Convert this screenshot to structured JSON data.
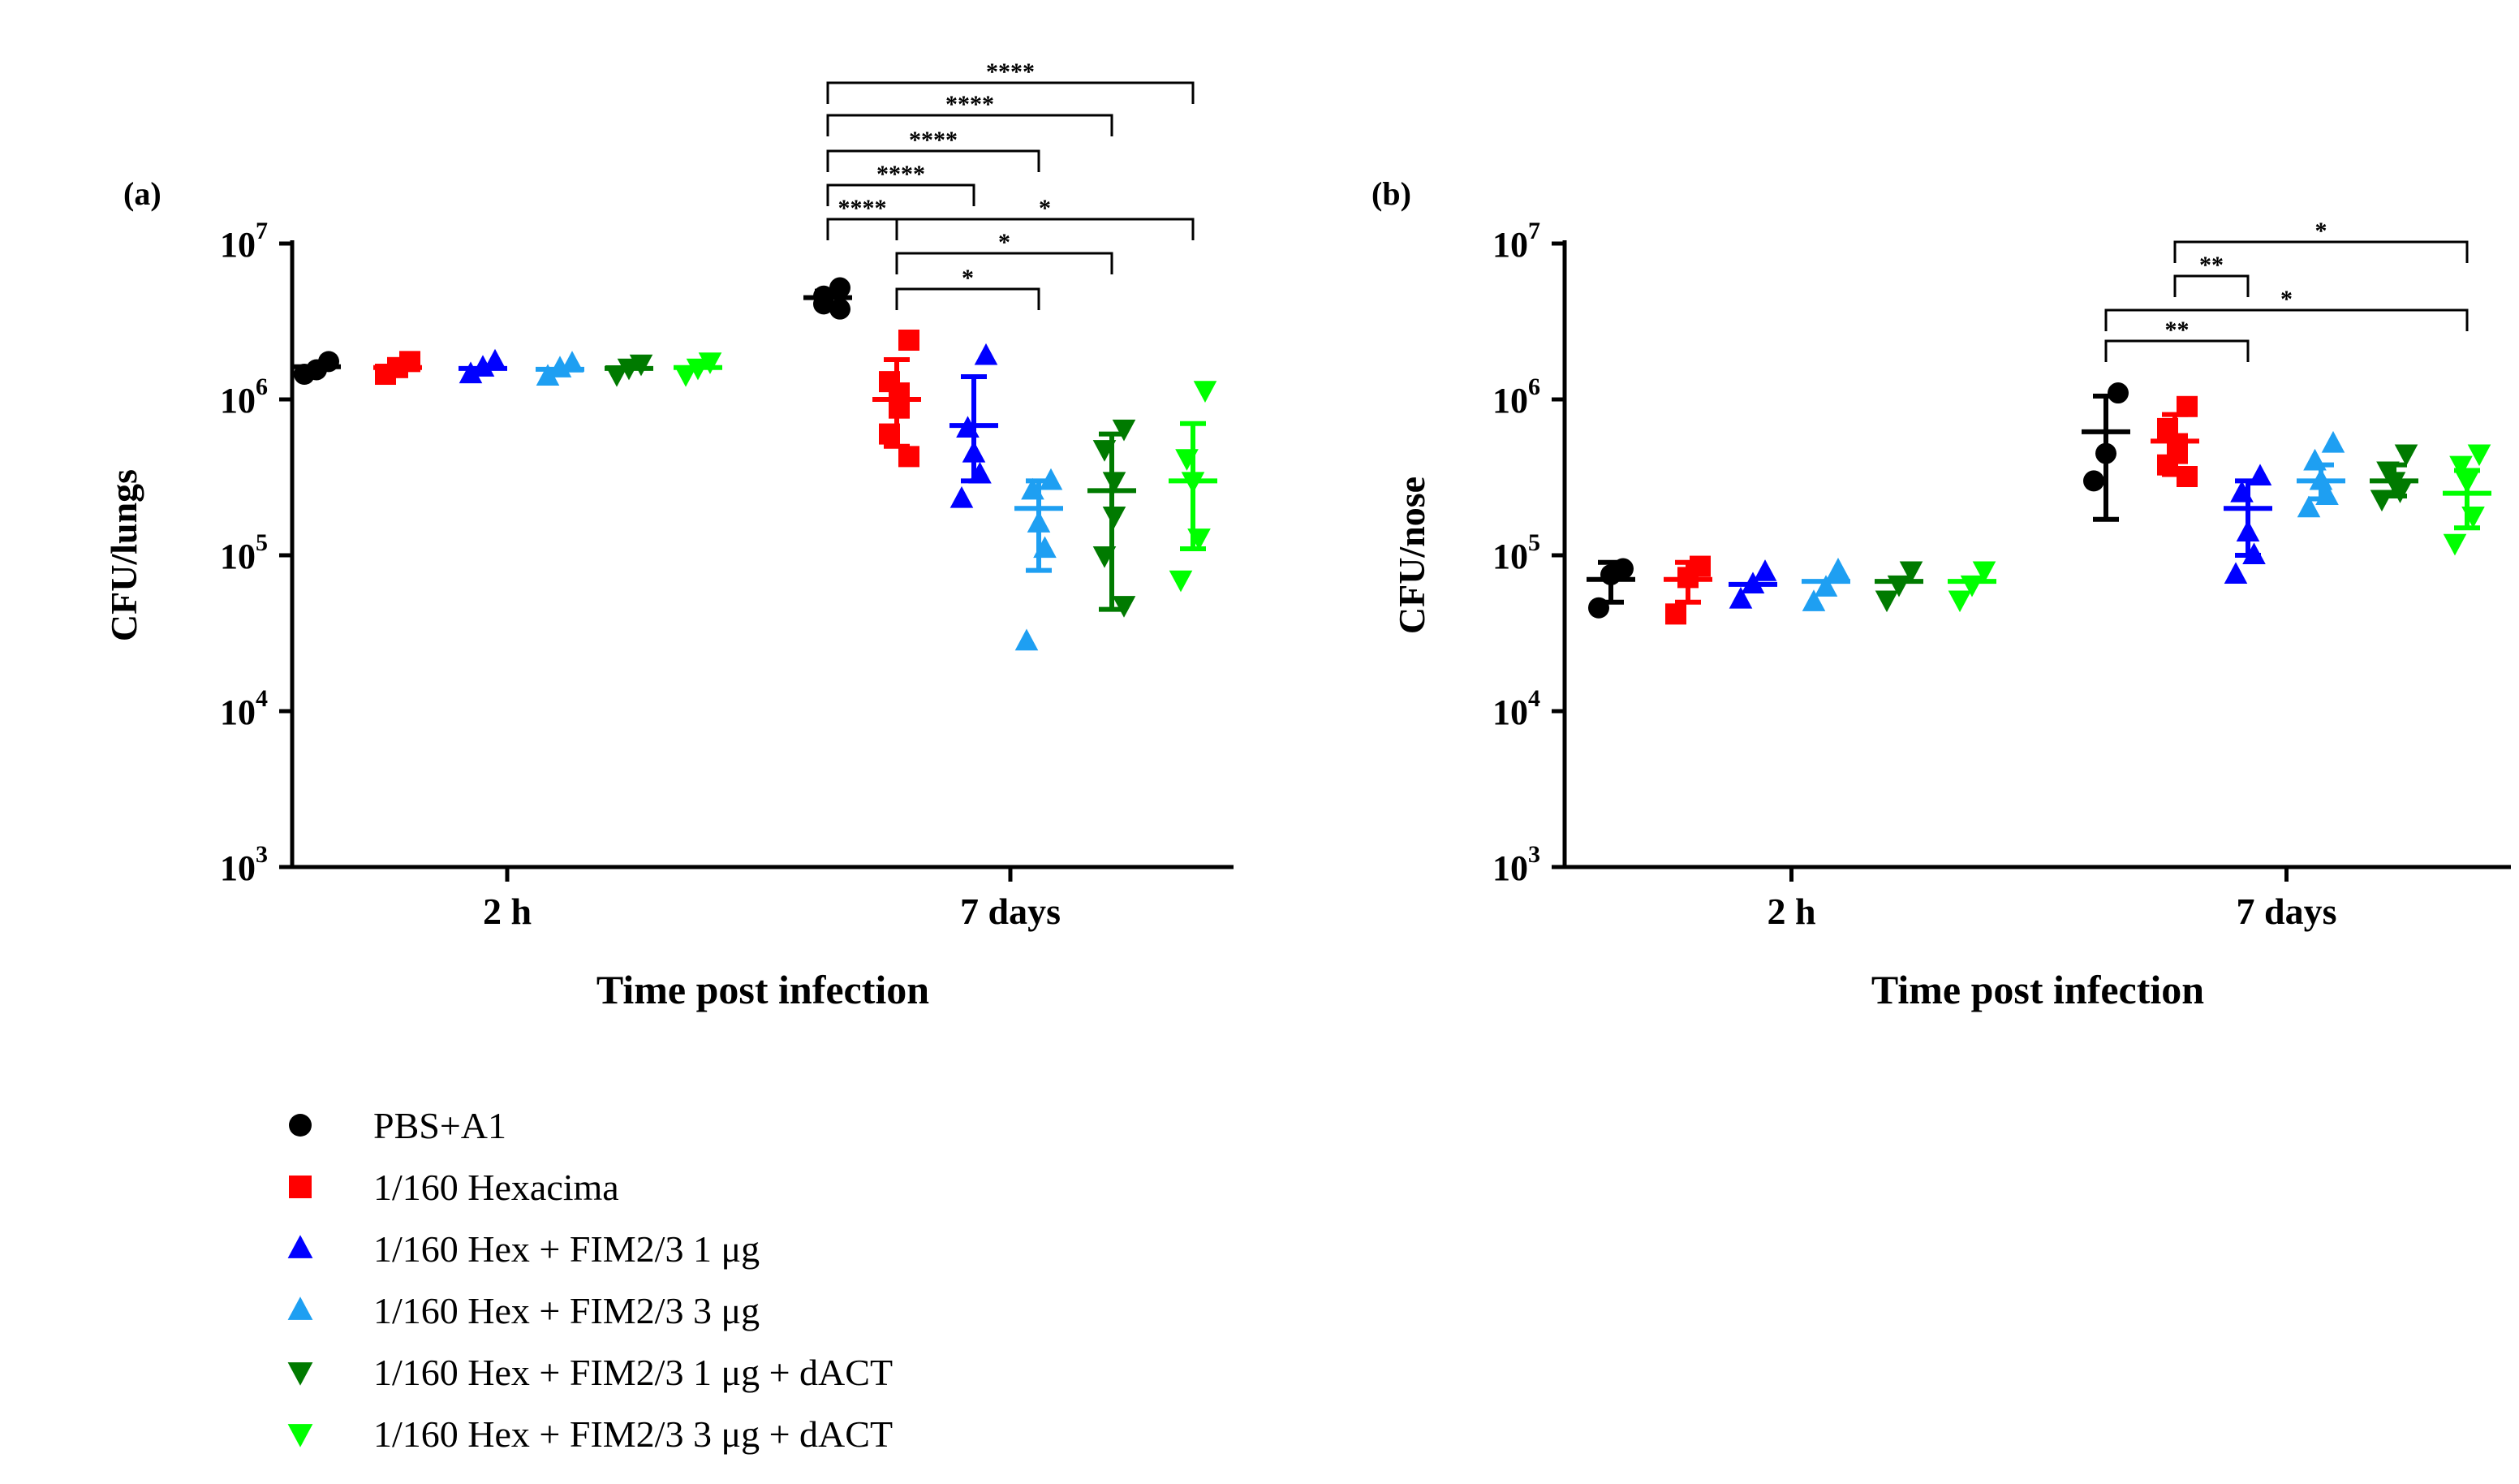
{
  "chart_data": [
    {
      "type": "scatter",
      "panel_label": "(a)",
      "ylabel": "CFU/lungs",
      "xlabel": "Time post infection",
      "yscale": "log",
      "ylim": [
        1000,
        10000000
      ],
      "yticks": [
        {
          "base": "10",
          "exp": "3"
        },
        {
          "base": "10",
          "exp": "4"
        },
        {
          "base": "10",
          "exp": "5"
        },
        {
          "base": "10",
          "exp": "6"
        },
        {
          "base": "10",
          "exp": "7"
        }
      ],
      "categories": [
        "2 h",
        "7 days"
      ],
      "series": [
        {
          "name": "PBS+A1",
          "marker": "circle",
          "color": "#000000",
          "groups": [
            {
              "points": [
                1750000,
                1550000,
                1450000
              ],
              "mean": 1620000
            },
            {
              "points": [
                5200000,
                4600000,
                4100000,
                3800000
              ],
              "mean": 4500000,
              "sd": [
                3950000,
                4950000
              ]
            }
          ]
        },
        {
          "name": "1/160 Hexacima",
          "marker": "square",
          "color": "#ff0000",
          "groups": [
            {
              "points": [
                1750000,
                1600000,
                1450000
              ],
              "mean": 1600000
            },
            {
              "points": [
                2400000,
                1300000,
                1100000,
                880000,
                600000,
                430000
              ],
              "mean": 1000000,
              "sd": [
                500000,
                1800000
              ]
            }
          ]
        },
        {
          "name": "1/160 Hex + FIM2/3 1 μg",
          "marker": "triangle-up",
          "color": "#0000ff",
          "groups": [
            {
              "points": [
                1750000,
                1600000,
                1450000
              ],
              "mean": 1580000
            },
            {
              "points": [
                1900000,
                650000,
                450000,
                330000,
                230000
              ],
              "mean": 680000,
              "sd": [
                300000,
                1400000
              ]
            }
          ]
        },
        {
          "name": "1/160 Hex + FIM2/3 3 μg",
          "marker": "triangle-up",
          "color": "#1e9ff2",
          "groups": [
            {
              "points": [
                1700000,
                1580000,
                1400000
              ],
              "mean": 1560000
            },
            {
              "points": [
                300000,
                260000,
                160000,
                110000,
                28000
              ],
              "mean": 200000,
              "sd": [
                80000,
                300000
              ]
            }
          ]
        },
        {
          "name": "1/160 Hex + FIM2/3 1 μg + dACT",
          "marker": "triangle-down",
          "color": "#007a00",
          "groups": [
            {
              "points": [
                1700000,
                1600000,
                1450000
              ],
              "mean": 1580000
            },
            {
              "points": [
                650000,
                480000,
                300000,
                180000,
                100000,
                48000
              ],
              "mean": 260000,
              "sd": [
                45000,
                600000
              ]
            }
          ]
        },
        {
          "name": "1/160 Hex + FIM2/3 3 μg + dACT",
          "marker": "triangle-down",
          "color": "#00ff00",
          "groups": [
            {
              "points": [
                1750000,
                1600000,
                1450000
              ],
              "mean": 1600000
            },
            {
              "points": [
                1150000,
                420000,
                300000,
                130000,
                70000
              ],
              "mean": 300000,
              "sd": [
                110000,
                700000
              ]
            }
          ]
        }
      ],
      "significance": [
        {
          "from": "PBS+A1",
          "to": "1/160 Hex + FIM2/3 3 μg + dACT",
          "label": "****"
        },
        {
          "from": "PBS+A1",
          "to": "1/160 Hex + FIM2/3 1 μg + dACT",
          "label": "****"
        },
        {
          "from": "PBS+A1",
          "to": "1/160 Hex + FIM2/3 3 μg",
          "label": "****"
        },
        {
          "from": "PBS+A1",
          "to": "1/160 Hex + FIM2/3 1 μg",
          "label": "****"
        },
        {
          "from": "PBS+A1",
          "to": "1/160 Hexacima",
          "label": "****"
        },
        {
          "from": "1/160 Hexacima",
          "to": "1/160 Hex + FIM2/3 3 μg + dACT",
          "label": "*"
        },
        {
          "from": "1/160 Hexacima",
          "to": "1/160 Hex + FIM2/3 1 μg + dACT",
          "label": "*"
        },
        {
          "from": "1/160 Hexacima",
          "to": "1/160 Hex + FIM2/3 3 μg",
          "label": "*"
        }
      ]
    },
    {
      "type": "scatter",
      "panel_label": "(b)",
      "ylabel": "CFU/nose",
      "xlabel": "Time post infection",
      "yscale": "log",
      "ylim": [
        1000,
        10000000
      ],
      "yticks": [
        {
          "base": "10",
          "exp": "3"
        },
        {
          "base": "10",
          "exp": "4"
        },
        {
          "base": "10",
          "exp": "5"
        },
        {
          "base": "10",
          "exp": "6"
        },
        {
          "base": "10",
          "exp": "7"
        }
      ],
      "categories": [
        "2 h",
        "7 days"
      ],
      "series": [
        {
          "name": "PBS+A1",
          "marker": "circle",
          "color": "#000000",
          "groups": [
            {
              "points": [
                82000,
                75000,
                46000
              ],
              "mean": 70000,
              "sd": [
                50000,
                90000
              ]
            },
            {
              "points": [
                1100000,
                450000,
                300000
              ],
              "mean": 620000,
              "sd": [
                170000,
                1050000
              ]
            }
          ]
        },
        {
          "name": "1/160 Hexacima",
          "marker": "square",
          "color": "#ff0000",
          "groups": [
            {
              "points": [
                85000,
                72000,
                42000
              ],
              "mean": 70000,
              "sd": [
                50000,
                90000
              ]
            },
            {
              "points": [
                900000,
                650000,
                520000,
                450000,
                380000,
                320000
              ],
              "mean": 540000,
              "sd": [
                330000,
                800000
              ]
            }
          ]
        },
        {
          "name": "1/160 Hex + FIM2/3 1 μg",
          "marker": "triangle-up",
          "color": "#0000ff",
          "groups": [
            {
              "points": [
                78000,
                65000,
                52000
              ],
              "mean": 65000
            },
            {
              "points": [
                320000,
                250000,
                140000,
                100000,
                75000
              ],
              "mean": 200000,
              "sd": [
                100000,
                300000
              ]
            }
          ]
        },
        {
          "name": "1/160 Hex + FIM2/3 3 μg",
          "marker": "triangle-up",
          "color": "#1e9ff2",
          "groups": [
            {
              "points": [
                80000,
                62000,
                50000
              ],
              "mean": 68000
            },
            {
              "points": [
                520000,
                400000,
                300000,
                240000,
                200000
              ],
              "mean": 300000,
              "sd": [
                230000,
                380000
              ]
            }
          ]
        },
        {
          "name": "1/160 Hex + FIM2/3 1 μg + dACT",
          "marker": "triangle-down",
          "color": "#007a00",
          "groups": [
            {
              "points": [
                80000,
                65000,
                52000
              ],
              "mean": 68000
            },
            {
              "points": [
                450000,
                350000,
                300000,
                260000,
                230000
              ],
              "mean": 300000,
              "sd": [
                240000,
                380000
              ]
            }
          ]
        },
        {
          "name": "1/160 Hex + FIM2/3 3 μg + dACT",
          "marker": "triangle-down",
          "color": "#00ff00",
          "groups": [
            {
              "points": [
                80000,
                65000,
                52000
              ],
              "mean": 68000
            },
            {
              "points": [
                450000,
                380000,
                300000,
                180000,
                120000
              ],
              "mean": 250000,
              "sd": [
                150000,
                350000
              ]
            }
          ]
        }
      ],
      "significance": [
        {
          "from": "1/160 Hexacima",
          "to": "1/160 Hex + FIM2/3 3 μg + dACT",
          "label": "*"
        },
        {
          "from": "1/160 Hexacima",
          "to": "1/160 Hex + FIM2/3 1 μg",
          "label": "**"
        },
        {
          "from": "PBS+A1",
          "to": "1/160 Hex + FIM2/3 3 μg + dACT",
          "label": "*"
        },
        {
          "from": "PBS+A1",
          "to": "1/160 Hex + FIM2/3 1 μg",
          "label": "**"
        }
      ]
    }
  ],
  "legend": [
    {
      "label": "PBS+A1",
      "marker": "circle",
      "color": "#000000"
    },
    {
      "label": "1/160 Hexacima",
      "marker": "square",
      "color": "#ff0000"
    },
    {
      "label": "1/160 Hex + FIM2/3 1 μg",
      "marker": "triangle-up",
      "color": "#0000ff"
    },
    {
      "label": "1/160 Hex + FIM2/3 3 μg",
      "marker": "triangle-up",
      "color": "#1e9ff2"
    },
    {
      "label": "1/160 Hex + FIM2/3 1 μg + dACT",
      "marker": "triangle-down",
      "color": "#007a00"
    },
    {
      "label": "1/160 Hex + FIM2/3 3 μg + dACT",
      "marker": "triangle-down",
      "color": "#00ff00"
    }
  ]
}
